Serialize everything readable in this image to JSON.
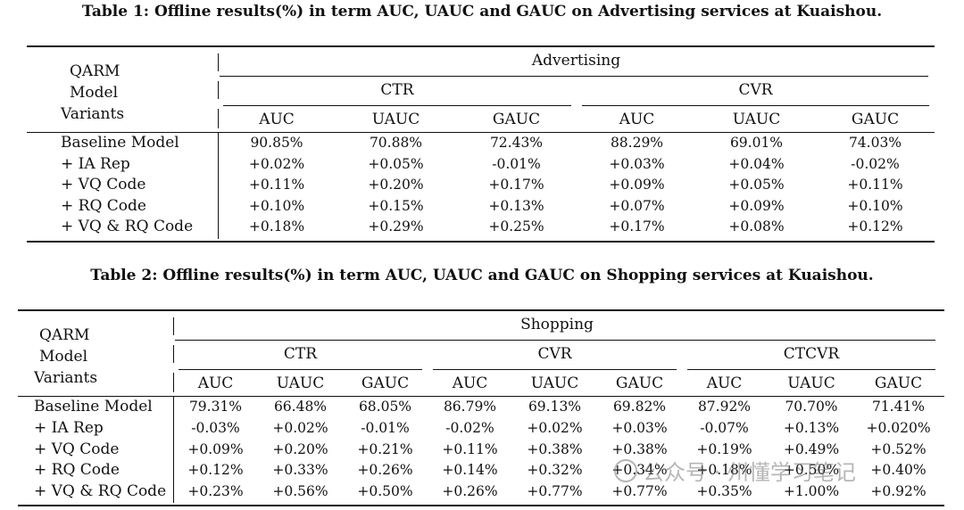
{
  "tables": [
    {
      "caption": "Table 1: Offline results(%) in term AUC, UAUC and GAUC on Advertising services at Kuaishou.",
      "row_header": [
        "QARM",
        "Model",
        "Variants"
      ],
      "super_header": "Advertising",
      "groups": [
        "CTR",
        "CVR"
      ],
      "metrics": [
        "AUC",
        "UAUC",
        "GAUC"
      ],
      "rows": [
        {
          "label": "Baseline Model",
          "values": [
            "90.85%",
            "70.88%",
            "72.43%",
            "88.29%",
            "69.01%",
            "74.03%"
          ]
        },
        {
          "label": "+ IA Rep",
          "values": [
            "+0.02%",
            "+0.05%",
            "-0.01%",
            "+0.03%",
            "+0.04%",
            "-0.02%"
          ]
        },
        {
          "label": "+ VQ Code",
          "values": [
            "+0.11%",
            "+0.20%",
            "+0.17%",
            "+0.09%",
            "+0.05%",
            "+0.11%"
          ]
        },
        {
          "label": "+ RQ Code",
          "values": [
            "+0.10%",
            "+0.15%",
            "+0.13%",
            "+0.07%",
            "+0.09%",
            "+0.10%"
          ]
        },
        {
          "label": "+ VQ & RQ Code",
          "values": [
            "+0.18%",
            "+0.29%",
            "+0.25%",
            "+0.17%",
            "+0.08%",
            "+0.12%"
          ]
        }
      ]
    },
    {
      "caption": "Table 2: Offline results(%) in term AUC, UAUC and GAUC on Shopping services at Kuaishou.",
      "row_header": [
        "QARM",
        "Model",
        "Variants"
      ],
      "super_header": "Shopping",
      "groups": [
        "CTR",
        "CVR",
        "CTCVR"
      ],
      "metrics": [
        "AUC",
        "UAUC",
        "GAUC"
      ],
      "rows": [
        {
          "label": "Baseline Model",
          "values": [
            "79.31%",
            "66.48%",
            "68.05%",
            "86.79%",
            "69.13%",
            "69.82%",
            "87.92%",
            "70.70%",
            "71.41%"
          ]
        },
        {
          "label": "+ IA Rep",
          "values": [
            "-0.03%",
            "+0.02%",
            "-0.01%",
            "-0.02%",
            "+0.02%",
            "+0.03%",
            "-0.07%",
            "+0.13%",
            "+0.020%"
          ]
        },
        {
          "label": "+ VQ Code",
          "values": [
            "+0.09%",
            "+0.20%",
            "+0.21%",
            "+0.11%",
            "+0.38%",
            "+0.38%",
            "+0.19%",
            "+0.49%",
            "+0.52%"
          ]
        },
        {
          "label": "+ RQ Code",
          "values": [
            "+0.12%",
            "+0.33%",
            "+0.26%",
            "+0.14%",
            "+0.32%",
            "+0.34%",
            "+0.18%",
            "+0.50%",
            "+0.40%"
          ]
        },
        {
          "label": "+ VQ & RQ Code",
          "values": [
            "+0.23%",
            "+0.56%",
            "+0.50%",
            "+0.26%",
            "+0.77%",
            "+0.77%",
            "+0.35%",
            "+1.00%",
            "+0.92%"
          ]
        }
      ]
    }
  ],
  "watermark": {
    "text": "公众号 · 州懂学习笔记",
    "icon": "wechat-icon"
  }
}
